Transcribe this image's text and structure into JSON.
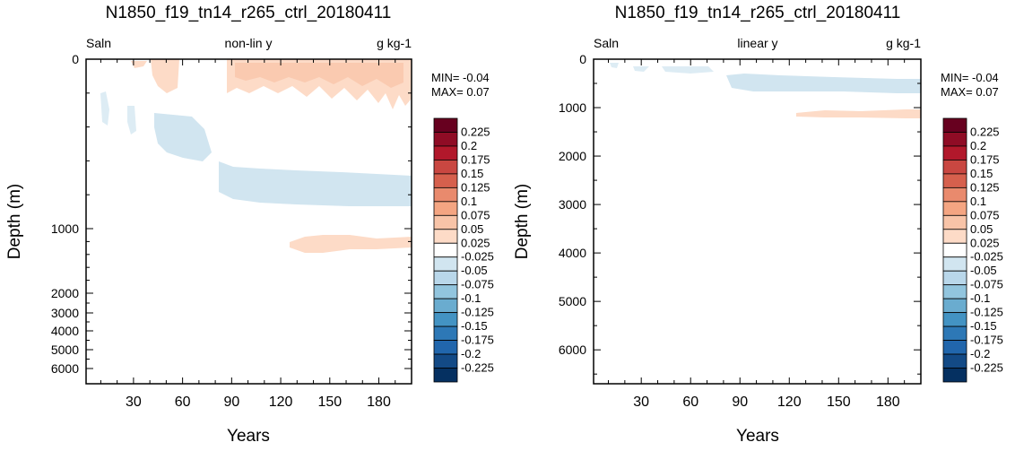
{
  "colorbar": {
    "labels": [
      "0.225",
      "0.2",
      "0.175",
      "0.15",
      "0.125",
      "0.1",
      "0.075",
      "0.05",
      "0.025",
      "-0.025",
      "-0.05",
      "-0.075",
      "-0.1",
      "-0.125",
      "-0.15",
      "-0.175",
      "-0.2",
      "-0.225"
    ],
    "colors": [
      "#67001f",
      "#8f0c25",
      "#b2182b",
      "#c94741",
      "#d6604d",
      "#e98a6d",
      "#f4a582",
      "#f8c4a8",
      "#fddbc7",
      "#ffffff",
      "#d1e5f0",
      "#b9d7ea",
      "#92c5de",
      "#6aaccf",
      "#4393c3",
      "#2d78b6",
      "#2166ac",
      "#134a86",
      "#053061"
    ]
  },
  "chart_data": [
    {
      "type": "heatmap",
      "title": "N1850_f19_tn14_r265_ctrl_20180411",
      "left_label": "Saln",
      "center_label": "non-lin y",
      "right_label": "g kg-1",
      "xlabel": "Years",
      "ylabel": "Depth (m)",
      "xlim": [
        1,
        200
      ],
      "ylim": [
        0,
        6500
      ],
      "y_scale": "non-linear",
      "x_ticks": [
        30,
        60,
        90,
        120,
        150,
        180
      ],
      "y_ticks": [
        0,
        1000,
        2000,
        3000,
        4000,
        5000,
        6000
      ],
      "min_text": "MIN= -0.04",
      "max_text": "MAX=  0.07",
      "features": [
        {
          "desc": "surface positive anomaly",
          "years": [
            85,
            200
          ],
          "depth": [
            0,
            200
          ],
          "value": 0.04
        },
        {
          "desc": "surface weak positive",
          "years": [
            30,
            55
          ],
          "depth": [
            0,
            50
          ],
          "value": 0.03
        },
        {
          "desc": "upper negative",
          "years": [
            10,
            80
          ],
          "depth": [
            200,
            550
          ],
          "value": -0.03
        },
        {
          "desc": "mid negative band",
          "years": [
            80,
            200
          ],
          "depth": [
            650,
            900
          ],
          "value": -0.03
        },
        {
          "desc": "deep positive band",
          "years": [
            125,
            200
          ],
          "depth": [
            1100,
            1300
          ],
          "value": 0.03
        }
      ]
    },
    {
      "type": "heatmap",
      "title": "N1850_f19_tn14_r265_ctrl_20180411",
      "left_label": "Saln",
      "center_label": "linear y",
      "right_label": "g kg-1",
      "xlabel": "Years",
      "ylabel": "Depth (m)",
      "xlim": [
        1,
        200
      ],
      "ylim": [
        0,
        6700
      ],
      "y_scale": "linear",
      "x_ticks": [
        30,
        60,
        90,
        120,
        150,
        180
      ],
      "y_ticks": [
        0,
        1000,
        2000,
        3000,
        4000,
        5000,
        6000
      ],
      "min_text": "MIN= -0.04",
      "max_text": "MAX=  0.07",
      "features": [
        {
          "desc": "upper negative",
          "years": [
            10,
            80
          ],
          "depth": [
            100,
            300
          ],
          "value": -0.03
        },
        {
          "desc": "mid negative band",
          "years": [
            80,
            200
          ],
          "depth": [
            400,
            750
          ],
          "value": -0.03
        },
        {
          "desc": "deep positive band",
          "years": [
            125,
            200
          ],
          "depth": [
            1050,
            1300
          ],
          "value": 0.03
        }
      ]
    }
  ]
}
